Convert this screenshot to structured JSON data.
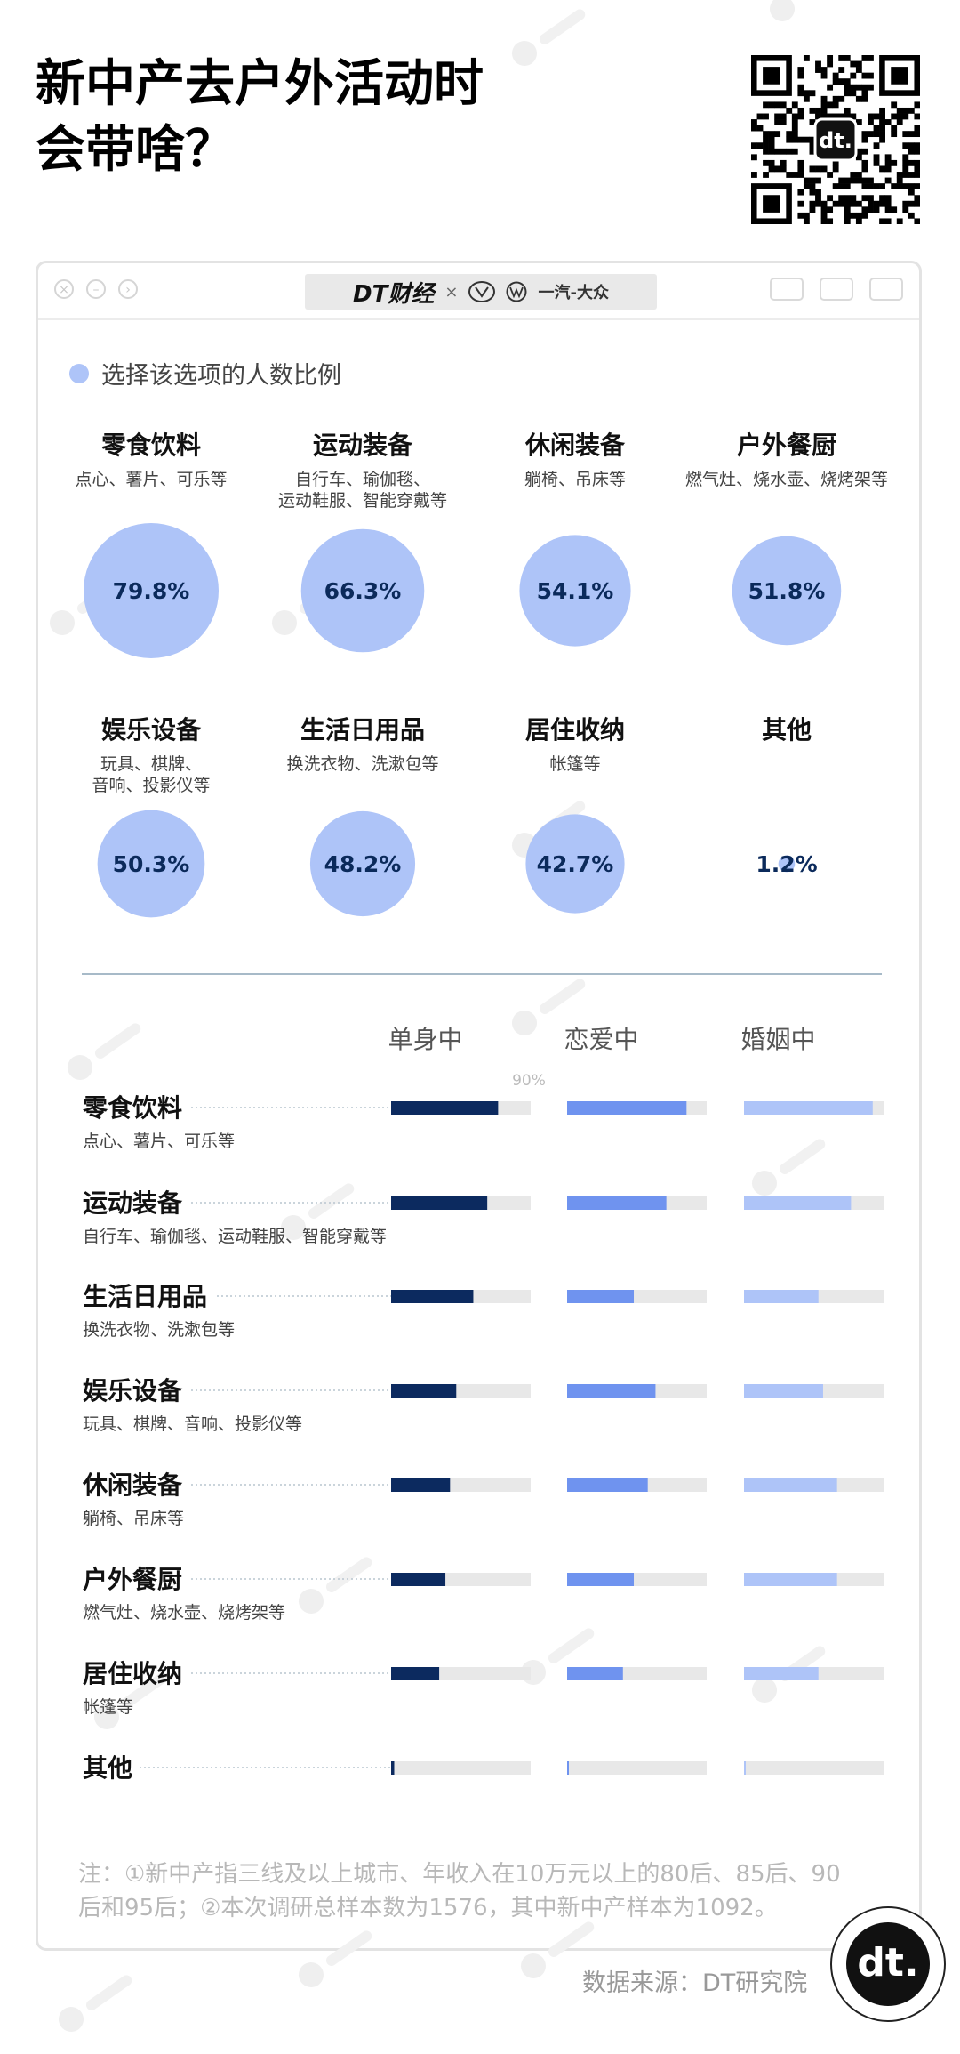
{
  "header": {
    "title_line1": "新中产去户外活动时",
    "title_line2": "会带啥？"
  },
  "brand": {
    "dt": "DT财经",
    "times": "×",
    "partner": "一汽-大众"
  },
  "legend": {
    "label": "选择该选项的人数比例"
  },
  "colors": {
    "bubble": "#aec4f8",
    "bubble_text": "#0b2a5b",
    "single": "#0c2a5f",
    "dating": "#6f93ef",
    "married": "#aec4f8",
    "track": "#e8e8e8"
  },
  "chart_data": [
    {
      "type": "bubble",
      "title": "选择该选项的人数比例",
      "items": [
        {
          "name": "零食饮料",
          "sub": "点心、薯片、可乐等",
          "value": 79.8,
          "label": "79.8%"
        },
        {
          "name": "运动装备",
          "sub": "自行车、瑜伽毯、\n运动鞋服、智能穿戴等",
          "value": 66.3,
          "label": "66.3%"
        },
        {
          "name": "休闲装备",
          "sub": "躺椅、吊床等",
          "value": 54.1,
          "label": "54.1%"
        },
        {
          "name": "户外餐厨",
          "sub": "燃气灶、烧水壶、烧烤架等",
          "value": 51.8,
          "label": "51.8%"
        },
        {
          "name": "娱乐设备",
          "sub": "玩具、棋牌、\n音响、投影仪等",
          "value": 50.3,
          "label": "50.3%"
        },
        {
          "name": "生活日用品",
          "sub": "换洗衣物、洗漱包等",
          "value": 48.2,
          "label": "48.2%"
        },
        {
          "name": "居住收纳",
          "sub": "帐篷等",
          "value": 42.7,
          "label": "42.7%"
        },
        {
          "name": "其他",
          "sub": "",
          "value": 1.2,
          "label": "1.2%"
        }
      ]
    },
    {
      "type": "bar",
      "series": [
        {
          "name": "单身中",
          "values": [
            69,
            62,
            53,
            42,
            38,
            35,
            31,
            2
          ]
        },
        {
          "name": "恋爱中",
          "values": [
            77,
            64,
            43,
            57,
            52,
            43,
            36,
            1
          ]
        },
        {
          "name": "婚姻中",
          "values": [
            83,
            69,
            48,
            51,
            60,
            60,
            48,
            1
          ]
        }
      ],
      "categories": [
        "零食饮料",
        "运动装备",
        "生活日用品",
        "娱乐设备",
        "休闲装备",
        "户外餐厨",
        "居住收纳",
        "其他"
      ],
      "category_subs": [
        "点心、薯片、可乐等",
        "自行车、瑜伽毯、运动鞋服、智能穿戴等",
        "换洗衣物、洗漱包等",
        "玩具、棋牌、音响、投影仪等",
        "躺椅、吊床等",
        "燃气灶、烧水壶、烧烤架等",
        "帐篷等",
        ""
      ],
      "max": 90,
      "max_label": "90%"
    }
  ],
  "footer": {
    "note": "注：①新中产指三线及以上城市、年收入在10万元以上的80后、85后、90后和95后；②本次调研总样本数为1576，其中新中产样本为1092。",
    "source": "数据来源：DT研究院",
    "badge": "dt."
  }
}
